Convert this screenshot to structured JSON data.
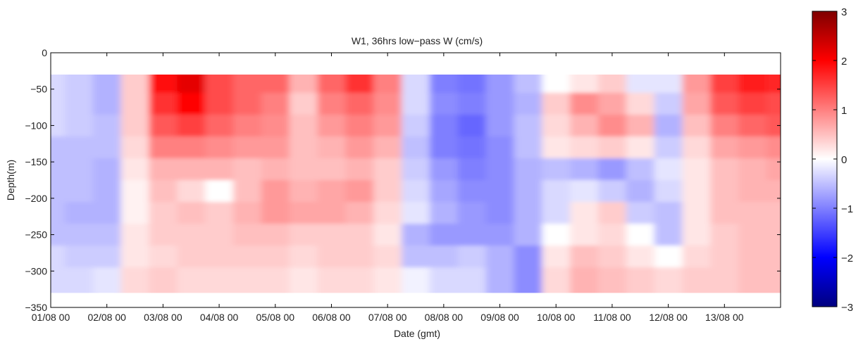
{
  "chart_data": {
    "type": "heatmap",
    "title": "W1, 36hrs low−pass W (cm/s)",
    "xlabel": "Date (gmt)",
    "ylabel": "Depth(m)",
    "x_ticks": [
      "01/08 00",
      "02/08 00",
      "03/08 00",
      "04/08 00",
      "05/08 00",
      "06/08 00",
      "07/08 00",
      "08/08 00",
      "09/08 00",
      "10/08 00",
      "11/08 00",
      "12/08 00",
      "13/08 00"
    ],
    "xlim": [
      "01/08 00",
      "14/08 00"
    ],
    "y_ticks": [
      0,
      -50,
      -100,
      -150,
      -200,
      -250,
      -300,
      -350
    ],
    "ylim": [
      -350,
      0
    ],
    "data_depth_range": [
      -330,
      -30
    ],
    "colorbar": {
      "ticks": [
        3,
        2,
        1,
        0,
        -1,
        -2,
        -3
      ],
      "range": [
        -3,
        3
      ],
      "colormap": [
        "#00007f",
        "#0000ff",
        "#ffffff",
        "#ff0000",
        "#7f0000"
      ]
    },
    "grid": false,
    "depths": [
      -40,
      -70,
      -100,
      -130,
      -160,
      -190,
      -220,
      -250,
      -280,
      -310
    ],
    "dates": [
      "01/08 00",
      "01/08 12",
      "02/08 00",
      "02/08 12",
      "03/08 00",
      "03/08 12",
      "04/08 00",
      "04/08 12",
      "05/08 00",
      "05/08 12",
      "06/08 00",
      "06/08 12",
      "07/08 00",
      "07/08 12",
      "08/08 00",
      "08/08 12",
      "09/08 00",
      "09/08 12",
      "10/08 00",
      "10/08 12",
      "11/08 00",
      "11/08 12",
      "12/08 00",
      "12/08 12",
      "13/08 00",
      "13/08 12",
      "14/08 00"
    ],
    "values": [
      [
        -0.3,
        -0.4,
        -0.6,
        0.4,
        1.9,
        2.2,
        1.4,
        1.2,
        1.2,
        0.6,
        1.2,
        1.6,
        1.0,
        -0.3,
        -1.0,
        -1.1,
        -0.8,
        -0.5,
        0.0,
        0.2,
        0.4,
        -0.2,
        -0.2,
        0.8,
        1.5,
        1.8,
        1.7
      ],
      [
        -0.3,
        -0.4,
        -0.6,
        0.4,
        1.6,
        2.0,
        1.4,
        1.2,
        1.0,
        0.4,
        1.0,
        1.2,
        0.9,
        -0.3,
        -0.9,
        -1.0,
        -0.8,
        -0.6,
        0.4,
        0.9,
        0.7,
        0.3,
        -0.4,
        0.7,
        1.3,
        1.5,
        1.4
      ],
      [
        -0.3,
        -0.4,
        -0.5,
        0.4,
        1.3,
        1.5,
        1.2,
        1.0,
        0.9,
        0.5,
        0.8,
        1.0,
        0.8,
        -0.4,
        -1.0,
        -1.2,
        -0.8,
        -0.5,
        0.3,
        0.6,
        0.9,
        0.6,
        -0.6,
        0.5,
        1.0,
        1.2,
        1.3
      ],
      [
        -0.5,
        -0.5,
        -0.5,
        0.3,
        1.0,
        1.0,
        0.9,
        0.8,
        0.8,
        0.5,
        0.6,
        0.8,
        0.6,
        -0.5,
        -1.0,
        -1.1,
        -0.9,
        -0.5,
        0.2,
        0.3,
        0.4,
        0.2,
        -0.4,
        0.3,
        0.7,
        0.8,
        0.9
      ],
      [
        -0.5,
        -0.5,
        -0.6,
        0.2,
        0.6,
        0.6,
        0.6,
        0.5,
        0.6,
        0.5,
        0.5,
        0.6,
        0.4,
        -0.4,
        -0.8,
        -1.0,
        -0.9,
        -0.6,
        -0.5,
        -0.6,
        -0.8,
        -0.5,
        -0.2,
        0.2,
        0.5,
        0.6,
        0.7
      ],
      [
        -0.5,
        -0.5,
        -0.6,
        0.1,
        0.5,
        0.3,
        0.0,
        0.5,
        0.8,
        0.6,
        0.7,
        0.8,
        0.4,
        -0.3,
        -0.7,
        -0.9,
        -0.9,
        -0.6,
        -0.3,
        -0.2,
        -0.4,
        -0.6,
        -0.3,
        0.2,
        0.5,
        0.6,
        0.6
      ],
      [
        -0.5,
        -0.6,
        -0.6,
        0.1,
        0.4,
        0.5,
        0.4,
        0.6,
        0.8,
        0.7,
        0.7,
        0.6,
        0.3,
        -0.2,
        -0.6,
        -0.8,
        -0.9,
        -0.6,
        -0.3,
        0.2,
        0.4,
        -0.4,
        -0.5,
        0.2,
        0.5,
        0.5,
        0.5
      ],
      [
        -0.5,
        -0.5,
        -0.5,
        0.2,
        0.4,
        0.4,
        0.4,
        0.5,
        0.5,
        0.4,
        0.4,
        0.4,
        0.2,
        -0.6,
        -0.8,
        -0.8,
        -0.8,
        -0.6,
        0.0,
        0.2,
        0.3,
        0.0,
        -0.5,
        0.2,
        0.4,
        0.5,
        0.5
      ],
      [
        -0.3,
        -0.4,
        -0.4,
        0.2,
        0.3,
        0.4,
        0.4,
        0.4,
        0.4,
        0.3,
        0.4,
        0.4,
        0.3,
        -0.5,
        -0.5,
        -0.4,
        -0.6,
        -0.9,
        0.2,
        0.5,
        0.4,
        0.2,
        0.0,
        0.3,
        0.4,
        0.5,
        0.5
      ],
      [
        -0.3,
        -0.3,
        -0.2,
        0.3,
        0.4,
        0.3,
        0.3,
        0.3,
        0.3,
        0.2,
        0.3,
        0.3,
        0.2,
        -0.1,
        -0.3,
        -0.3,
        -0.6,
        -0.9,
        0.3,
        0.6,
        0.5,
        0.4,
        0.3,
        0.4,
        0.4,
        0.5,
        0.5
      ]
    ]
  }
}
